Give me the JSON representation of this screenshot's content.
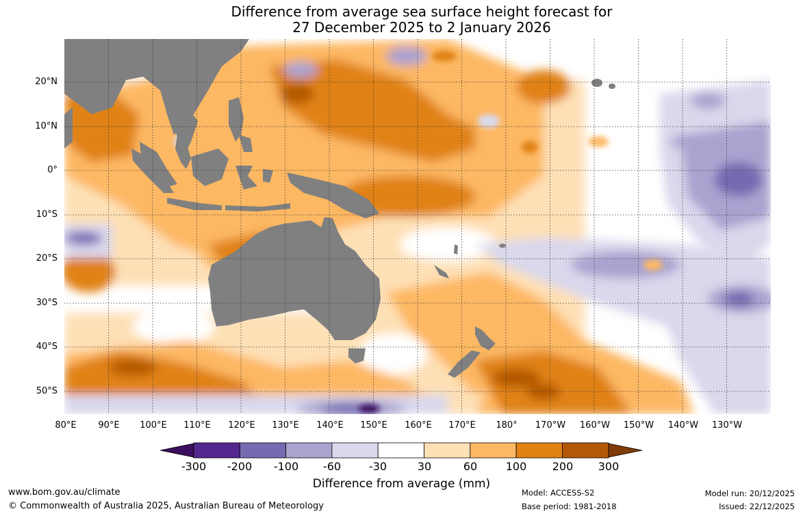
{
  "title": {
    "line1": "Difference from average sea surface height forecast for",
    "line2": "27 December 2025 to 2 January 2026"
  },
  "map": {
    "latitude_labels": [
      "20°N",
      "10°N",
      "0°",
      "10°S",
      "20°S",
      "30°S",
      "40°S",
      "50°S"
    ],
    "longitude_labels": [
      "80°E",
      "90°E",
      "100°E",
      "110°E",
      "120°E",
      "130°E",
      "140°E",
      "150°E",
      "160°E",
      "170°E",
      "180°",
      "170°W",
      "160°W",
      "150°W",
      "140°W",
      "130°W"
    ],
    "land_color": "#808080",
    "gridline_color": "#333333"
  },
  "colorbar": {
    "tick_labels": [
      "-300",
      "-200",
      "-100",
      "-60",
      "-30",
      "30",
      "60",
      "100",
      "200",
      "300"
    ],
    "colors": [
      "#3b0f5e",
      "#54278f",
      "#756bb1",
      "#aaa3cf",
      "#d9d8ec",
      "#ffffff",
      "#fee0b6",
      "#fdb863",
      "#e08214",
      "#b35806",
      "#7f3b08"
    ],
    "label": "Difference from average (mm)"
  },
  "footer": {
    "website": "www.bom.gov.au/climate",
    "copyright": "© Commonwealth of Australia 2025, Australian Bureau of Meteorology",
    "model": "Model: ACCESS-S2",
    "base_period": "Base period: 1981-2018",
    "model_run": "Model run: 20/12/2025",
    "issued": "Issued: 22/12/2025"
  }
}
